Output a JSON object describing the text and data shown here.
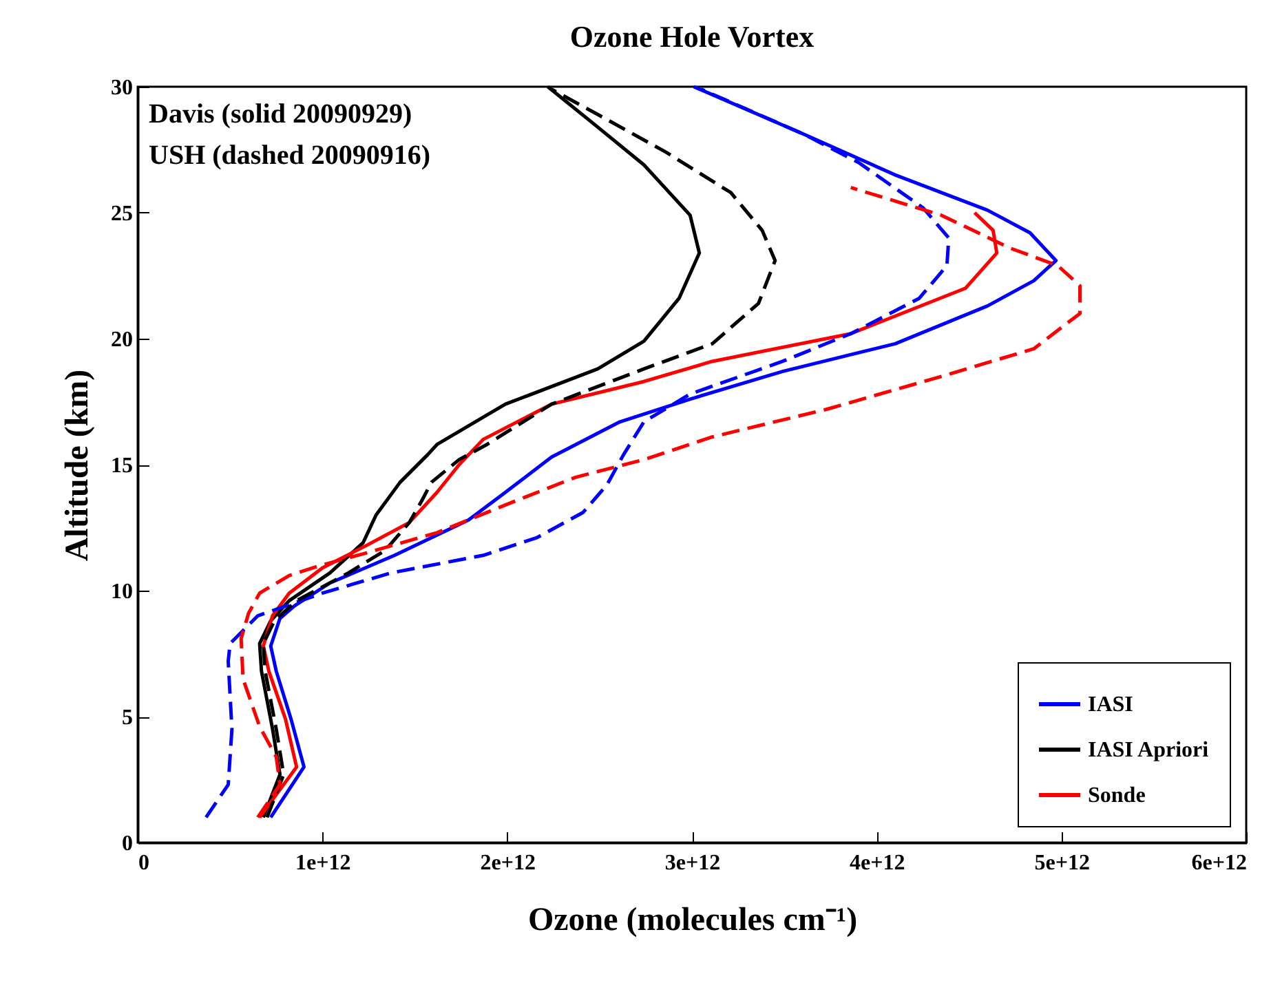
{
  "chart_data": {
    "type": "line",
    "title": "Ozone Hole Vortex",
    "xlabel": "Ozone (molecules cm⁻¹)",
    "ylabel": "Altitude (km)",
    "annotations": [
      "Davis (solid 20090929)",
      "USH (dashed 20090916)"
    ],
    "xlim": [
      0,
      6000000000000.0
    ],
    "xticks": [
      0,
      {
        "value": 1000000000000.0,
        "label": "1e+12"
      },
      {
        "value": 2000000000000.0,
        "label": "2e+12"
      },
      {
        "value": 3000000000000.0,
        "label": "3e+12"
      },
      {
        "value": 4000000000000.0,
        "label": "4e+12"
      },
      {
        "value": 5000000000000.0,
        "label": "5e+12"
      },
      {
        "value": 6000000000000.0,
        "label": "6e+12"
      }
    ],
    "ylim": [
      0,
      30
    ],
    "yticks": [
      0,
      5,
      10,
      15,
      20,
      25,
      30
    ],
    "grid": false,
    "legend": "bottom right",
    "series": [
      {
        "name": "IASI",
        "color": "#0000ff",
        "line_style": "solid",
        "x": [
          720000000000.0,
          900000000000.0,
          830000000000.0,
          750000000000.0,
          720000000000.0,
          770000000000.0,
          850000000000.0,
          1040000000000.0,
          1390000000000.0,
          1790000000000.0,
          1990000000000.0,
          2240000000000.0,
          2610000000000.0,
          2990000000000.0,
          3490000000000.0,
          4100000000000.0,
          4600000000000.0,
          4850000000000.0,
          4970000000000.0,
          4830000000000.0,
          4600000000000.0,
          4100000000000.0,
          3610000000000.0,
          3010000000000.0
        ],
        "values": [
          1,
          3,
          4.9,
          6.8,
          7.8,
          8.9,
          9.4,
          10.3,
          11.4,
          12.8,
          13.9,
          15.3,
          16.7,
          17.6,
          18.7,
          19.8,
          21.3,
          22.3,
          23.1,
          24.2,
          25.1,
          26.5,
          28.1,
          30
        ]
      },
      {
        "name": "IASI Apriori",
        "color": "#000000",
        "line_style": "solid",
        "x": [
          680000000000.0,
          770000000000.0,
          730000000000.0,
          670000000000.0,
          660000000000.0,
          720000000000.0,
          820000000000.0,
          1040000000000.0,
          1220000000000.0,
          1290000000000.0,
          1420000000000.0,
          1570000000000.0,
          1620000000000.0,
          1990000000000.0,
          2490000000000.0,
          2740000000000.0,
          2930000000000.0,
          3040000000000.0,
          2990000000000.0,
          2740000000000.0,
          2490000000000.0,
          2220000000000.0
        ],
        "values": [
          1,
          2.7,
          4.5,
          6.8,
          7.9,
          8.8,
          9.6,
          10.7,
          11.9,
          13,
          14.3,
          15.4,
          15.8,
          17.4,
          18.8,
          19.9,
          21.6,
          23.4,
          24.9,
          26.9,
          28.4,
          30
        ]
      },
      {
        "name": "Sonde",
        "color": "#ff0000",
        "line_style": "solid",
        "x": [
          660000000000.0,
          770000000000.0,
          860000000000.0,
          800000000000.0,
          710000000000.0,
          680000000000.0,
          730000000000.0,
          820000000000.0,
          1000000000000.0,
          1240000000000.0,
          1470000000000.0,
          1620000000000.0,
          1740000000000.0,
          1870000000000.0,
          2240000000000.0,
          2740000000000.0,
          3110000000000.0,
          3860000000000.0,
          4480000000000.0,
          4650000000000.0,
          4630000000000.0,
          4530000000000.0
        ],
        "values": [
          1,
          2.1,
          3,
          4.9,
          6.8,
          7.8,
          9,
          9.9,
          10.9,
          11.8,
          12.7,
          13.9,
          15,
          16,
          17.4,
          18.3,
          19.1,
          20.2,
          22,
          23.4,
          24.3,
          25
        ]
      },
      {
        "color": "#0000ff",
        "line_style": "dashed",
        "x": [
          370000000000.0,
          490000000000.0,
          510000000000.0,
          490000000000.0,
          500000000000.0,
          650000000000.0,
          1000000000000.0,
          1370000000000.0,
          1870000000000.0,
          2160000000000.0,
          2410000000000.0,
          2540000000000.0,
          2630000000000.0,
          2740000000000.0,
          2990000000000.0,
          3490000000000.0,
          3860000000000.0,
          4230000000000.0,
          4380000000000.0,
          4390000000000.0,
          4250000000000.0,
          3900000000000.0,
          3610000000000.0,
          3050000000000.0
        ],
        "values": [
          1,
          2.3,
          4.5,
          7.2,
          7.9,
          9,
          9.9,
          10.7,
          11.4,
          12.1,
          13.1,
          14.2,
          15.4,
          16.7,
          17.8,
          19.1,
          20.2,
          21.6,
          22.9,
          24,
          25.2,
          27,
          28.1,
          29.9
        ]
      },
      {
        "color": "#000000",
        "line_style": "dashed",
        "x": [
          700000000000.0,
          790000000000.0,
          750000000000.0,
          690000000000.0,
          680000000000.0,
          740000000000.0,
          860000000000.0,
          1140000000000.0,
          1340000000000.0,
          1470000000000.0,
          1540000000000.0,
          1590000000000.0,
          1740000000000.0,
          1890000000000.0,
          2240000000000.0,
          2740000000000.0,
          3110000000000.0,
          3360000000000.0,
          3450000000000.0,
          3380000000000.0,
          3210000000000.0,
          2860000000000.0,
          2490000000000.0,
          2240000000000.0
        ],
        "values": [
          1,
          2.7,
          4.5,
          6.8,
          7.9,
          8.8,
          9.6,
          10.7,
          11.6,
          12.7,
          13.6,
          14.3,
          15.2,
          15.8,
          17.4,
          18.8,
          19.8,
          21.4,
          23.1,
          24.3,
          25.8,
          27.4,
          28.9,
          29.9
        ]
      },
      {
        "color": "#ff0000",
        "line_style": "dashed",
        "x": [
          650000000000.0,
          770000000000.0,
          750000000000.0,
          660000000000.0,
          570000000000.0,
          560000000000.0,
          600000000000.0,
          660000000000.0,
          820000000000.0,
          990000000000.0,
          1240000000000.0,
          1620000000000.0,
          1990000000000.0,
          2370000000000.0,
          2740000000000.0,
          3110000000000.0,
          3730000000000.0,
          4350000000000.0,
          4850000000000.0,
          5100000000000.0,
          5100000000000.0,
          4980000000000.0,
          4720000000000.0,
          4350000000000.0,
          3860000000000.0
        ],
        "values": [
          1,
          2.3,
          3.4,
          4.6,
          6.5,
          8.1,
          9.1,
          9.9,
          10.6,
          11,
          11.5,
          12.3,
          13.4,
          14.5,
          15.2,
          16.1,
          17.2,
          18.5,
          19.6,
          21,
          22.1,
          22.9,
          23.6,
          24.9,
          26
        ]
      }
    ]
  }
}
